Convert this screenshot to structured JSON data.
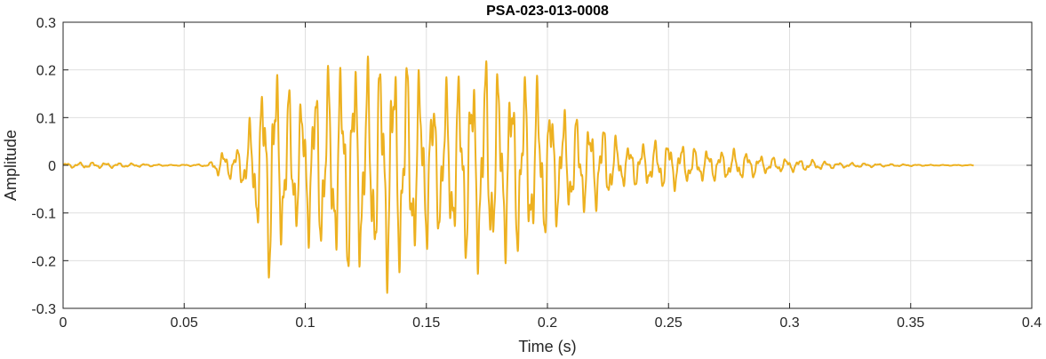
{
  "chart_data": {
    "type": "line",
    "title": "PSA-023-013-0008",
    "xlabel": "Time (s)",
    "ylabel": "Amplitude",
    "xlim": [
      0,
      0.4
    ],
    "ylim": [
      -0.3,
      0.3
    ],
    "xticks": [
      0,
      0.05,
      0.1,
      0.15,
      0.2,
      0.25,
      0.3,
      0.35,
      0.4
    ],
    "xtick_labels": [
      "0",
      "0.05",
      "0.1",
      "0.15",
      "0.2",
      "0.25",
      "0.3",
      "0.35",
      "0.4"
    ],
    "yticks": [
      -0.3,
      -0.2,
      -0.1,
      0,
      0.1,
      0.2,
      0.3
    ],
    "ytick_labels": [
      "-0.3",
      "-0.2",
      "-0.1",
      "0",
      "0.1",
      "0.2",
      "0.3"
    ],
    "grid": true,
    "series": [
      {
        "color": "#EDB120",
        "envelope": {
          "t": [
            0,
            0.01,
            0.02,
            0.03,
            0.035,
            0.045,
            0.06,
            0.063,
            0.066,
            0.07,
            0.075,
            0.078,
            0.082,
            0.086,
            0.09,
            0.095,
            0.1,
            0.105,
            0.11,
            0.115,
            0.12,
            0.125,
            0.13,
            0.135,
            0.14,
            0.145,
            0.15,
            0.155,
            0.16,
            0.165,
            0.17,
            0.175,
            0.18,
            0.185,
            0.19,
            0.195,
            0.2,
            0.205,
            0.21,
            0.215,
            0.22,
            0.225,
            0.23,
            0.24,
            0.25,
            0.26,
            0.27,
            0.28,
            0.29,
            0.3,
            0.31,
            0.32,
            0.33,
            0.34,
            0.35,
            0.36,
            0.376
          ],
          "amp": [
            0.005,
            0.007,
            0.006,
            0.004,
            0.003,
            0.001,
            0.003,
            0.02,
            0.035,
            0.03,
            0.06,
            0.12,
            0.19,
            0.28,
            0.2,
            0.17,
            0.16,
            0.21,
            0.22,
            0.24,
            0.27,
            0.23,
            0.26,
            0.28,
            0.25,
            0.24,
            0.19,
            0.17,
            0.2,
            0.22,
            0.24,
            0.25,
            0.22,
            0.21,
            0.21,
            0.2,
            0.17,
            0.13,
            0.12,
            0.11,
            0.1,
            0.09,
            0.05,
            0.05,
            0.06,
            0.04,
            0.035,
            0.035,
            0.02,
            0.015,
            0.012,
            0.006,
            0.005,
            0.003,
            0.002,
            0.001,
            0.001
          ]
        }
      }
    ]
  }
}
